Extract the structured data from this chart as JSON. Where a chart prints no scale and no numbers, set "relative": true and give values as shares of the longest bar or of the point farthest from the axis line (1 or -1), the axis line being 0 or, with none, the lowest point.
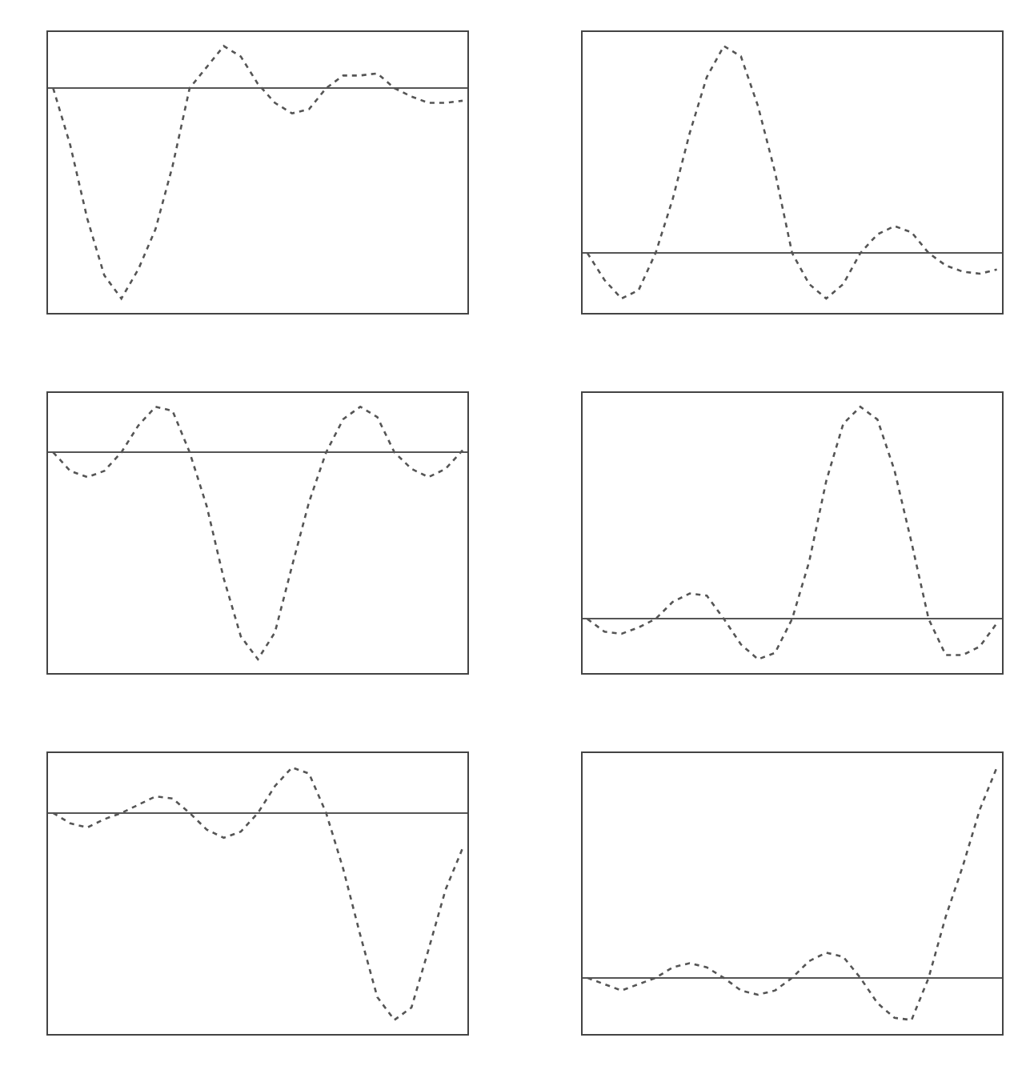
{
  "chart_data": [
    {
      "type": "line",
      "relative": true,
      "line_style": "dotted",
      "categories": [
        null,
        null,
        null,
        null,
        null,
        null,
        null,
        null,
        null,
        null,
        null,
        null,
        null,
        null,
        null,
        null,
        null,
        null,
        null,
        null,
        null,
        null,
        null,
        null,
        null
      ],
      "series": [
        {
          "color": "#555555",
          "values": [
            0,
            -0.27,
            -0.62,
            -0.89,
            -1,
            -0.86,
            -0.67,
            -0.37,
            0,
            0.1,
            0.2,
            0.15,
            0.02,
            -0.07,
            -0.12,
            -0.1,
            0,
            0.06,
            0.06,
            0.07,
            0,
            -0.04,
            -0.07,
            -0.07,
            -0.06
          ]
        }
      ]
    },
    {
      "type": "line",
      "relative": true,
      "line_style": "dotted",
      "categories": [
        null,
        null,
        null,
        null,
        null,
        null,
        null,
        null,
        null,
        null,
        null,
        null,
        null,
        null,
        null,
        null,
        null,
        null,
        null,
        null,
        null,
        null,
        null,
        null,
        null
      ],
      "series": [
        {
          "color": "#555555",
          "values": [
            0,
            -0.13,
            -0.22,
            -0.18,
            0,
            0.26,
            0.58,
            0.85,
            1,
            0.95,
            0.71,
            0.39,
            0,
            -0.15,
            -0.22,
            -0.15,
            0,
            0.09,
            0.13,
            0.1,
            0,
            -0.06,
            -0.09,
            -0.1,
            -0.08
          ]
        }
      ]
    },
    {
      "type": "line",
      "relative": true,
      "line_style": "dotted",
      "categories": [
        null,
        null,
        null,
        null,
        null,
        null,
        null,
        null,
        null,
        null,
        null,
        null,
        null,
        null,
        null,
        null,
        null,
        null,
        null,
        null,
        null,
        null,
        null,
        null,
        null
      ],
      "series": [
        {
          "color": "#555555",
          "values": [
            0,
            -0.09,
            -0.12,
            -0.09,
            0,
            0.13,
            0.22,
            0.2,
            0,
            -0.26,
            -0.61,
            -0.89,
            -1,
            -0.87,
            -0.55,
            -0.24,
            0,
            0.16,
            0.22,
            0.17,
            0,
            -0.08,
            -0.12,
            -0.08,
            0.01
          ]
        }
      ]
    },
    {
      "type": "line",
      "relative": true,
      "line_style": "dotted",
      "categories": [
        null,
        null,
        null,
        null,
        null,
        null,
        null,
        null,
        null,
        null,
        null,
        null,
        null,
        null,
        null,
        null,
        null,
        null,
        null,
        null,
        null,
        null,
        null,
        null,
        null
      ],
      "series": [
        {
          "color": "#555555",
          "values": [
            0,
            -0.06,
            -0.07,
            -0.04,
            0,
            0.08,
            0.12,
            0.11,
            0,
            -0.12,
            -0.19,
            -0.16,
            0,
            0.27,
            0.65,
            0.92,
            1,
            0.94,
            0.7,
            0.36,
            0,
            -0.17,
            -0.17,
            -0.13,
            -0.02
          ]
        }
      ]
    },
    {
      "type": "line",
      "relative": true,
      "line_style": "dotted",
      "categories": [
        null,
        null,
        null,
        null,
        null,
        null,
        null,
        null,
        null,
        null,
        null,
        null,
        null,
        null,
        null,
        null,
        null,
        null,
        null,
        null,
        null,
        null,
        null,
        null,
        null
      ],
      "series": [
        {
          "color": "#555555",
          "values": [
            0,
            -0.05,
            -0.07,
            -0.03,
            0,
            0.04,
            0.08,
            0.07,
            0,
            -0.08,
            -0.12,
            -0.09,
            0,
            0.13,
            0.22,
            0.19,
            0,
            -0.27,
            -0.59,
            -0.89,
            -1,
            -0.94,
            -0.66,
            -0.37,
            -0.17
          ]
        }
      ]
    },
    {
      "type": "line",
      "relative": true,
      "line_style": "dotted",
      "categories": [
        null,
        null,
        null,
        null,
        null,
        null,
        null,
        null,
        null,
        null,
        null,
        null,
        null,
        null,
        null,
        null,
        null,
        null,
        null,
        null,
        null,
        null,
        null,
        null,
        null
      ],
      "series": [
        {
          "color": "#555555",
          "values": [
            0,
            -0.03,
            -0.06,
            -0.03,
            0,
            0.05,
            0.07,
            0.05,
            0,
            -0.06,
            -0.08,
            -0.06,
            0,
            0.08,
            0.12,
            0.1,
            0,
            -0.12,
            -0.19,
            -0.2,
            0,
            0.29,
            0.53,
            0.8,
            1
          ]
        }
      ]
    }
  ]
}
